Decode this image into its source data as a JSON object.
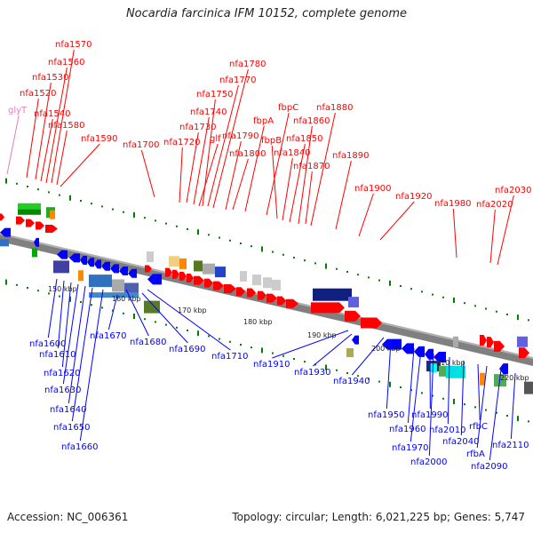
{
  "title": "Nocardia farcinica IFM 10152, complete genome",
  "accession": "Accession: NC_006361",
  "topology": "Topology: circular; Length: 6,021,225 bp; Genes: 5,747",
  "colors": {
    "forward_gene": "#ff0000",
    "reverse_gene": "#0000ff",
    "backbone": "#808080",
    "tick": "#008000",
    "trna_label": "#e080c0"
  },
  "kbp_marks": [
    "150 kbp",
    "160 kbp",
    "170 kbp",
    "180 kbp",
    "190 kbp",
    "200 kbp",
    "210 kbp",
    "220 kbp"
  ],
  "top_labels": [
    "glyT",
    "nfa1520",
    "nfa1530",
    "nfa1540",
    "nfa1560",
    "nfa1570",
    "nfa1580",
    "nfa1590",
    "nfa1700",
    "nfa1720",
    "nfa1730",
    "nfa1740",
    "glf",
    "nfa1750",
    "nfa1770",
    "nfa1780",
    "nfa1790",
    "nfa1800",
    "fbpA",
    "fbpC",
    "fbpB",
    "nfa1840",
    "nfa1850",
    "nfa1860",
    "nfa1870",
    "nfa1880",
    "nfa1890",
    "nfa1900",
    "nfa1920",
    "nfa1980",
    "nfa2020",
    "nfa2030"
  ],
  "bottom_labels": [
    "nfa1600",
    "nfa1610",
    "nfa1620",
    "nfa1630",
    "nfa1640",
    "nfa1650",
    "nfa1660",
    "nfa1670",
    "nfa1680",
    "nfa1690",
    "nfa1710",
    "nfa1910",
    "nfa1930",
    "nfa1940",
    "nfa1950",
    "nfa1960",
    "nfa1970",
    "nfa1990",
    "nfa2000",
    "nfa2010",
    "nfa2040",
    "rfbC",
    "rfbA",
    "nfa2090",
    "nfa2110"
  ]
}
